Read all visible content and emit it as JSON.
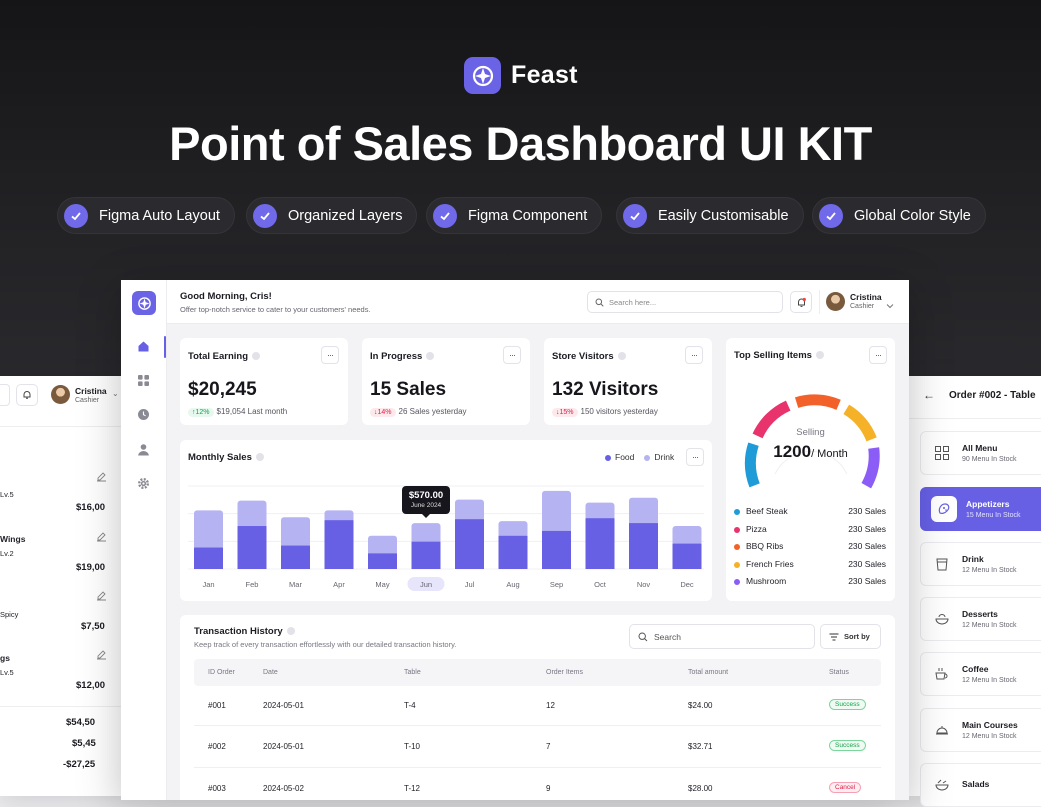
{
  "hero": {
    "brand": "Feast",
    "title": "Point of Sales Dashboard UI KIT",
    "features": [
      "Figma Auto Layout",
      "Organized Layers",
      "Figma Component",
      "Easily Customisable",
      "Global Color Style"
    ]
  },
  "header": {
    "greeting": "Good Morning, Cris!",
    "subtitle": "Offer top-notch service to cater to your customers' needs.",
    "search_placeholder": "Search here...",
    "user_name": "Cristina",
    "user_role": "Cashier"
  },
  "stats": [
    {
      "title": "Total Earning",
      "value": "$20,245",
      "delta": "12%",
      "delta_dir": "up",
      "note": "$19,054 Last month"
    },
    {
      "title": "In Progress",
      "value": "15 Sales",
      "delta": "14%",
      "delta_dir": "down",
      "note": "26 Sales yesterday"
    },
    {
      "title": "Store Visitors",
      "value": "132 Visitors",
      "delta": "15%",
      "delta_dir": "down",
      "note": "150 visitors yesterday"
    }
  ],
  "monthly_sales": {
    "title": "Monthly Sales",
    "legend": [
      "Food",
      "Drink"
    ],
    "tooltip_value": "$570.00",
    "tooltip_label": "June 2024",
    "selected_month": "Jun"
  },
  "chart_data": {
    "type": "bar",
    "categories": [
      "Jan",
      "Feb",
      "Mar",
      "Apr",
      "May",
      "Jun",
      "Jul",
      "Aug",
      "Sep",
      "Oct",
      "Nov",
      "Dec"
    ],
    "series": [
      {
        "name": "Food",
        "values": [
          22,
          44,
          24,
          50,
          16,
          28,
          51,
          34,
          39,
          52,
          47,
          26
        ]
      },
      {
        "name": "Drink",
        "values": [
          38,
          26,
          29,
          10,
          18,
          19,
          20,
          15,
          41,
          16,
          26,
          18
        ]
      }
    ],
    "stacked": true,
    "colors": {
      "Food": "#6760e5",
      "Drink": "#b6b3f2"
    },
    "grid": true,
    "legend": "top-right"
  },
  "top_selling": {
    "title": "Top Selling Items",
    "gauge_label": "Selling",
    "gauge_value": "1200",
    "gauge_unit": "/ Month",
    "items": [
      {
        "name": "Beef Steak",
        "sales": "230 Sales",
        "color": "#1f9bd8"
      },
      {
        "name": "Pizza",
        "sales": "230 Sales",
        "color": "#e8336d"
      },
      {
        "name": "BBQ Ribs",
        "sales": "230 Sales",
        "color": "#f2612a"
      },
      {
        "name": "French Fries",
        "sales": "230 Sales",
        "color": "#f5b127"
      },
      {
        "name": "Mushroom",
        "sales": "230 Sales",
        "color": "#8b5cf6"
      }
    ]
  },
  "transactions": {
    "title": "Transaction History",
    "subtitle": "Keep track of every transaction effortlessly with our detailed transaction history.",
    "search_placeholder": "Search",
    "sort_label": "Sort by",
    "columns": [
      "ID Order",
      "Date",
      "Table",
      "Order Items",
      "Total amount",
      "Status"
    ],
    "rows": [
      {
        "id": "#001",
        "date": "2024-05-01",
        "table": "T-4",
        "items": "12",
        "total": "$24.00",
        "status": "Success"
      },
      {
        "id": "#002",
        "date": "2024-05-01",
        "table": "T-10",
        "items": "7",
        "total": "$32.71",
        "status": "Success"
      },
      {
        "id": "#003",
        "date": "2024-05-02",
        "table": "T-12",
        "items": "9",
        "total": "$28.00",
        "status": "Cancel"
      }
    ]
  },
  "left_panel": {
    "user_name": "Cristina",
    "user_role": "Cashier",
    "items": [
      {
        "name": "",
        "note": "Lv.5",
        "price": "$16,00"
      },
      {
        "name": "Wings",
        "note": "Lv.2",
        "price": "$19,00"
      },
      {
        "name": "",
        "note": "Spicy",
        "price": "$7,50"
      },
      {
        "name": "gs",
        "note": "Lv.5",
        "price": "$12,00"
      }
    ],
    "totals": [
      "$54,50",
      "$5,45",
      "-$27,25"
    ]
  },
  "right_panel": {
    "title": "Order #002 - Table",
    "categories": [
      {
        "name": "All Menu",
        "stock": "90 Menu In Stock",
        "icon": "grid-icon"
      },
      {
        "name": "Appetizers",
        "stock": "15 Menu In Stock",
        "icon": "appetizer-icon"
      },
      {
        "name": "Drink",
        "stock": "12 Menu In Stock",
        "icon": "cup-icon"
      },
      {
        "name": "Desserts",
        "stock": "12 Menu In Stock",
        "icon": "bowl-icon"
      },
      {
        "name": "Coffee",
        "stock": "12 Menu In Stock",
        "icon": "coffee-icon"
      },
      {
        "name": "Main Courses",
        "stock": "12 Menu In Stock",
        "icon": "cloche-icon"
      },
      {
        "name": "Salads",
        "stock": "",
        "icon": "salad-icon"
      }
    ]
  }
}
